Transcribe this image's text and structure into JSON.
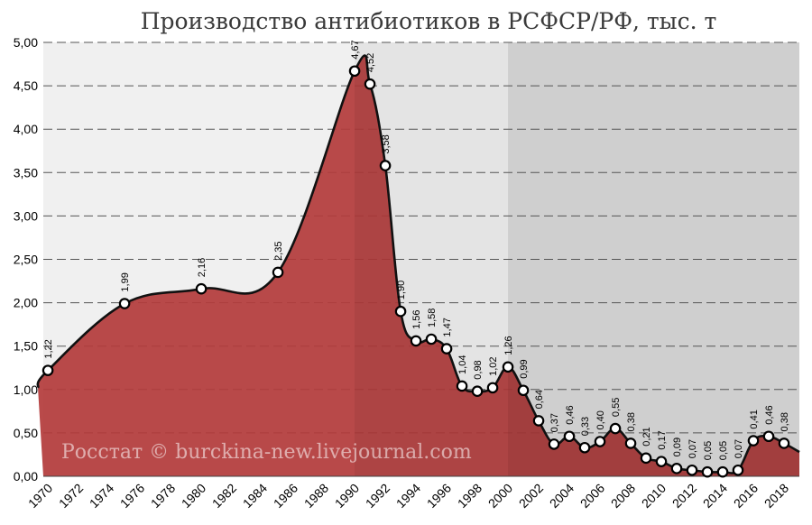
{
  "chart_data": {
    "type": "area",
    "title": "Производство антибиотиков в РСФСР/РФ, тыс. т",
    "xlabel": "",
    "ylabel": "",
    "ylim": [
      0,
      5
    ],
    "xlim": [
      1969.7,
      2019
    ],
    "y_ticks": [
      "0,00",
      "0,50",
      "1,00",
      "1,50",
      "2,00",
      "2,50",
      "3,00",
      "3,50",
      "4,00",
      "4,50",
      "5,00"
    ],
    "x_ticks": [
      "1970",
      "1972",
      "1974",
      "1976",
      "1978",
      "1980",
      "1982",
      "1984",
      "1986",
      "1988",
      "1990",
      "1992",
      "1994",
      "1996",
      "1998",
      "2000",
      "2002",
      "2004",
      "2006",
      "2008",
      "2010",
      "2012",
      "2014",
      "2016",
      "2018"
    ],
    "grid": "horizontal dashed",
    "fill_color": "#b33b3b",
    "line_color": "#111111",
    "background_bands": [
      {
        "from": 1969.7,
        "to": 1990,
        "color": "#f0f0f0"
      },
      {
        "from": 1990,
        "to": 2000,
        "color": "#e4e4e4"
      },
      {
        "from": 2000,
        "to": 2019,
        "color": "#cfcfcf"
      }
    ],
    "points": [
      {
        "x": 1970,
        "y": 1.22,
        "label": "1,22"
      },
      {
        "x": 1975,
        "y": 1.99,
        "label": "1,99"
      },
      {
        "x": 1980,
        "y": 2.16,
        "label": "2,16"
      },
      {
        "x": 1985,
        "y": 2.35,
        "label": "2,35"
      },
      {
        "x": 1990,
        "y": 4.67,
        "label": "4,67"
      },
      {
        "x": 1991,
        "y": 4.52,
        "label": "4,52"
      },
      {
        "x": 1992,
        "y": 3.58,
        "label": "3,58"
      },
      {
        "x": 1993,
        "y": 1.9,
        "label": "1,90"
      },
      {
        "x": 1994,
        "y": 1.56,
        "label": "1,56"
      },
      {
        "x": 1995,
        "y": 1.58,
        "label": "1,58"
      },
      {
        "x": 1996,
        "y": 1.47,
        "label": "1,47"
      },
      {
        "x": 1997,
        "y": 1.04,
        "label": "1,04"
      },
      {
        "x": 1998,
        "y": 0.98,
        "label": "0,98"
      },
      {
        "x": 1999,
        "y": 1.02,
        "label": "1,02"
      },
      {
        "x": 2000,
        "y": 1.26,
        "label": "1,26"
      },
      {
        "x": 2001,
        "y": 0.99,
        "label": "0,99"
      },
      {
        "x": 2002,
        "y": 0.64,
        "label": "0,64"
      },
      {
        "x": 2003,
        "y": 0.37,
        "label": "0,37"
      },
      {
        "x": 2004,
        "y": 0.46,
        "label": "0,46"
      },
      {
        "x": 2005,
        "y": 0.33,
        "label": "0,33"
      },
      {
        "x": 2006,
        "y": 0.4,
        "label": "0,40"
      },
      {
        "x": 2007,
        "y": 0.55,
        "label": "0,55"
      },
      {
        "x": 2008,
        "y": 0.38,
        "label": "0,38"
      },
      {
        "x": 2009,
        "y": 0.21,
        "label": "0,21"
      },
      {
        "x": 2010,
        "y": 0.17,
        "label": "0,17"
      },
      {
        "x": 2011,
        "y": 0.09,
        "label": "0,09"
      },
      {
        "x": 2012,
        "y": 0.07,
        "label": "0,07"
      },
      {
        "x": 2013,
        "y": 0.05,
        "label": "0,05"
      },
      {
        "x": 2014,
        "y": 0.05,
        "label": "0,05"
      },
      {
        "x": 2015,
        "y": 0.07,
        "label": "0,07"
      },
      {
        "x": 2016,
        "y": 0.41,
        "label": "0,41"
      },
      {
        "x": 2017,
        "y": 0.46,
        "label": "0,46"
      },
      {
        "x": 2018,
        "y": 0.38,
        "label": "0,38"
      }
    ],
    "watermark": "Росстат © burckina-new.livejournal.com"
  }
}
